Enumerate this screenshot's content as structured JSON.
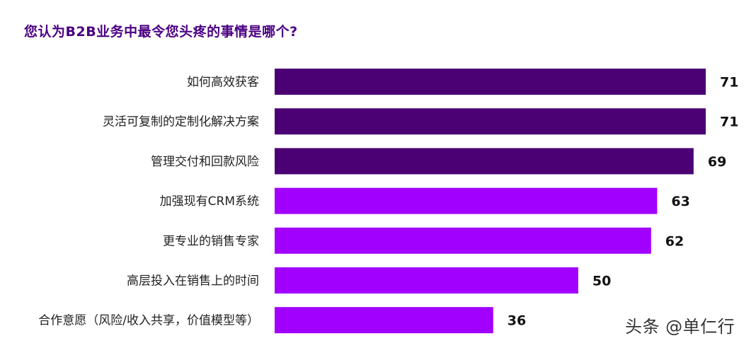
{
  "chart_data": {
    "type": "bar",
    "orientation": "horizontal",
    "title": "您认为B2B业务中最令您头疼的事情是哪个?",
    "categories": [
      "如何高效获客",
      "灵活可复制的定制化解决方案",
      "管理交付和回款风险",
      "加强现有CRM系统",
      "更专业的销售专家",
      "高层投入在销售上的时间",
      "合作意愿（风险/收入共享，价值模型等）"
    ],
    "values": [
      71,
      71,
      69,
      63,
      62,
      50,
      36
    ],
    "value_labels": [
      "71",
      "71",
      "69",
      "63",
      "62",
      "50",
      "36"
    ],
    "bar_colors": [
      "#4b0073",
      "#4b0073",
      "#4b0073",
      "#a100ff",
      "#a100ff",
      "#a100ff",
      "#a100ff"
    ],
    "xlim": [
      0,
      71
    ],
    "grid": false,
    "legend": "none"
  },
  "watermark": "头条 @单仁行"
}
